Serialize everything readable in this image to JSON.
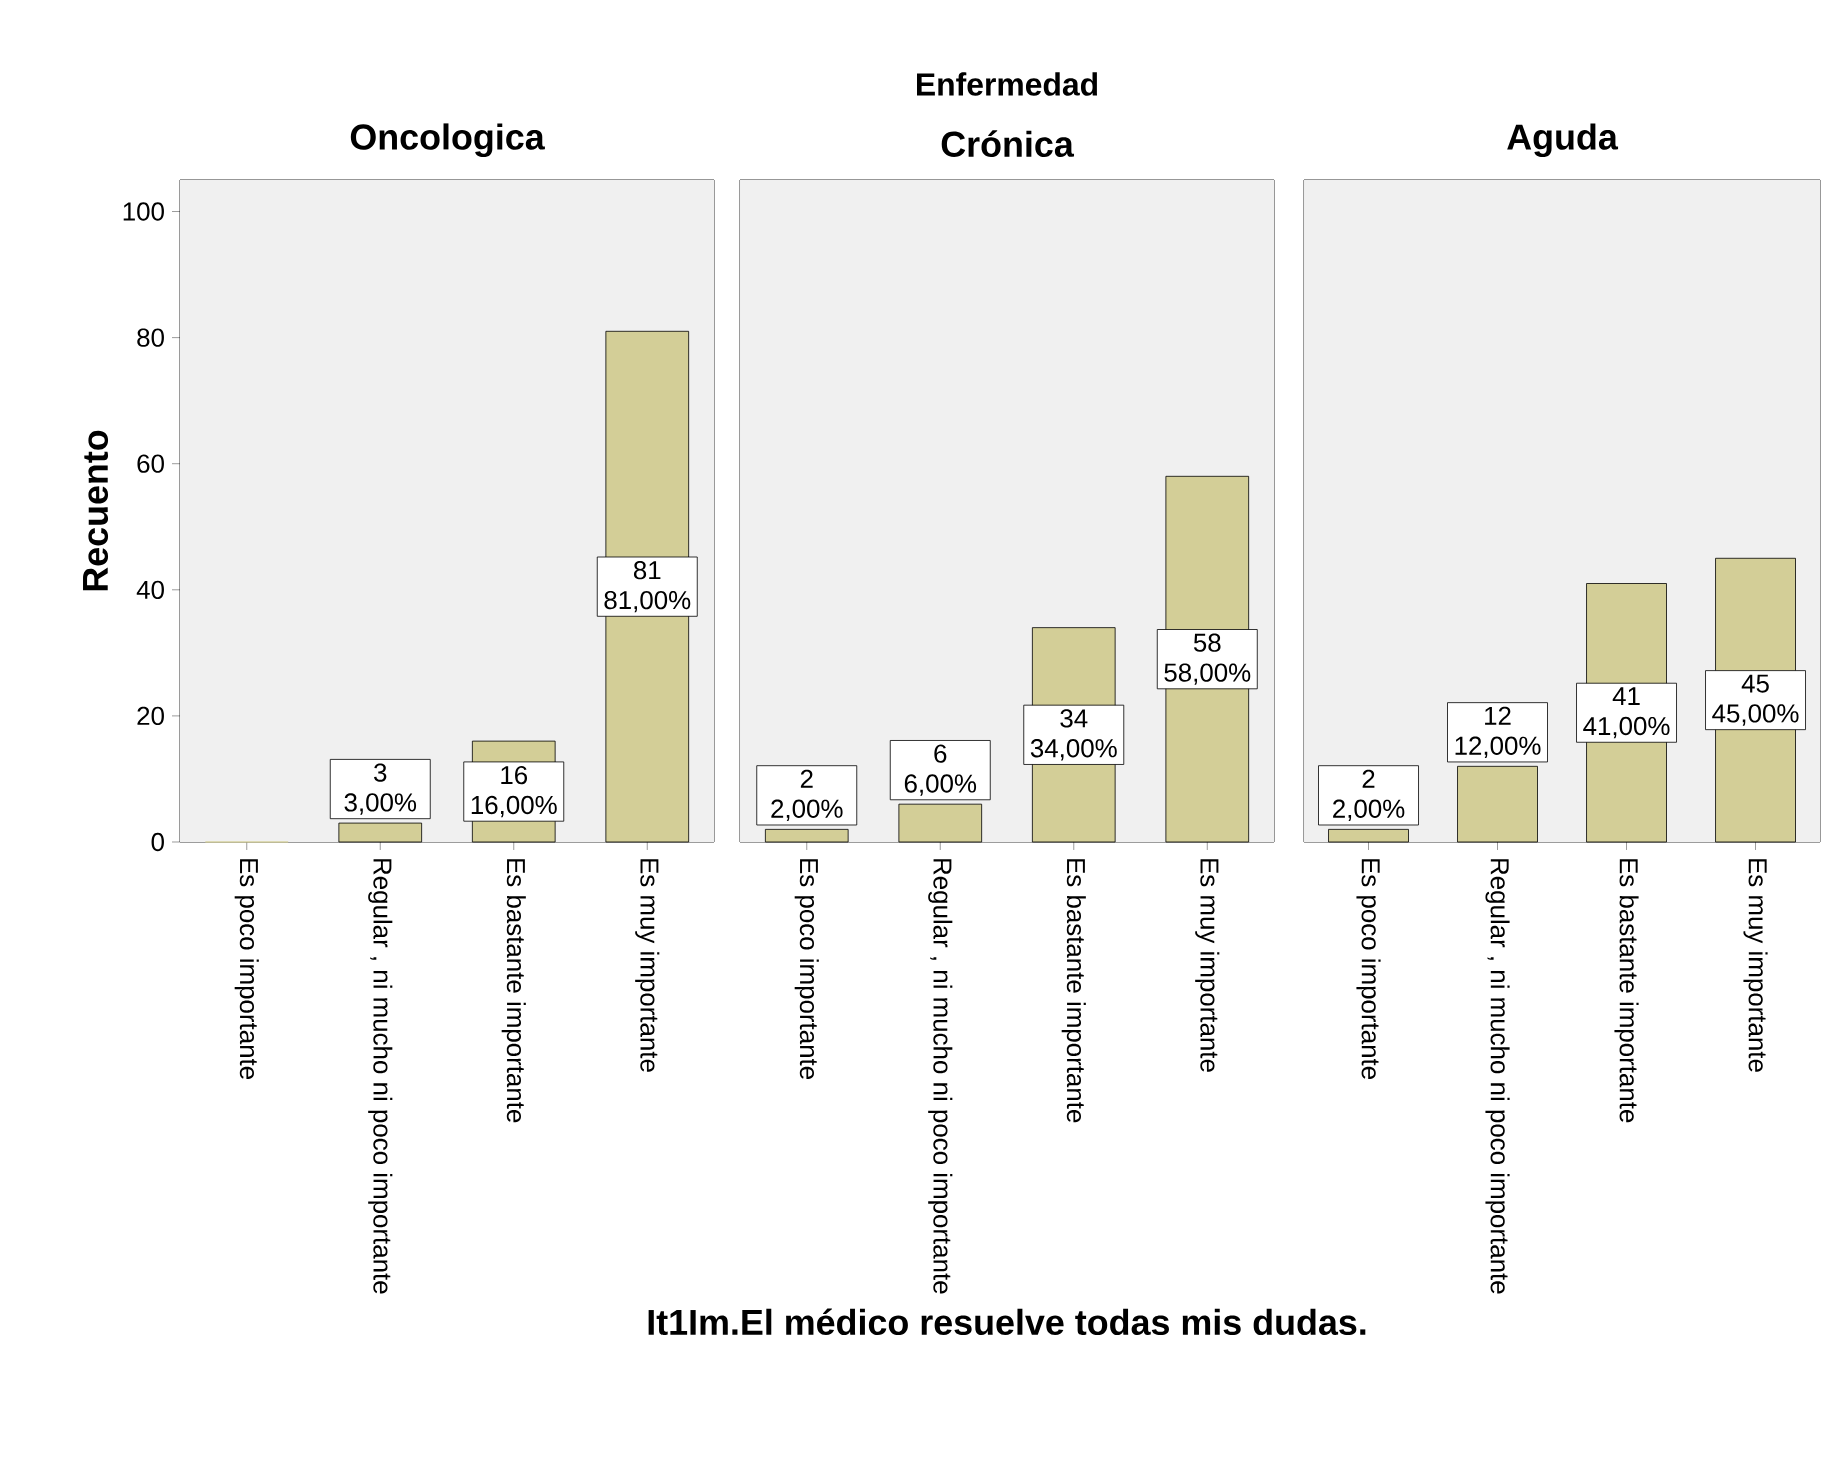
{
  "chart_data": [
    {
      "type": "bar",
      "title": "Oncologica",
      "ylabel": "Recuento",
      "categories": [
        "Es poco importante",
        "Regular , ni mucho ni poco importante",
        "Es bastante importante",
        "Es muy importante"
      ],
      "values": [
        0,
        3,
        16,
        81
      ],
      "value_labels": [
        null,
        "3 3,00%",
        "16 16,00%",
        "81 81,00%"
      ],
      "color": "#d3ce97",
      "ylim": [
        0,
        105
      ],
      "yticks": [
        0,
        20,
        40,
        60,
        80,
        100
      ]
    },
    {
      "type": "bar",
      "title": "Crónica",
      "xlabel": "It1Im.El médico resuelve todas mis dudas.",
      "annotations": [
        "Enfermedad"
      ],
      "categories": [
        "Es poco importante",
        "Regular , ni mucho ni poco importante",
        "Es bastante importante",
        "Es muy importante"
      ],
      "values": [
        2,
        6,
        34,
        58
      ],
      "value_labels": [
        "2 2,00%",
        "6 6,00%",
        "34 34,00%",
        "58 58,00%"
      ],
      "color": "#d3ce97",
      "ylim": [
        0,
        105
      ],
      "yticks": [
        0,
        20,
        40,
        60,
        80,
        100
      ],
      "tick_labels": "x"
    },
    {
      "type": "bar",
      "title": "Aguda",
      "categories": [
        "Es poco importante",
        "Regular , ni mucho ni poco importante",
        "Es bastante importante",
        "Es muy importante"
      ],
      "values": [
        2,
        12,
        41,
        45
      ],
      "value_labels": [
        "2 2,00%",
        "12 12,00%",
        "41 41,00%",
        "45 45,00%"
      ],
      "color": "#d3ce97",
      "ylim": [
        0,
        105
      ],
      "yticks": [
        0,
        20,
        40,
        60,
        80,
        100
      ],
      "tick_labels": "x"
    }
  ]
}
